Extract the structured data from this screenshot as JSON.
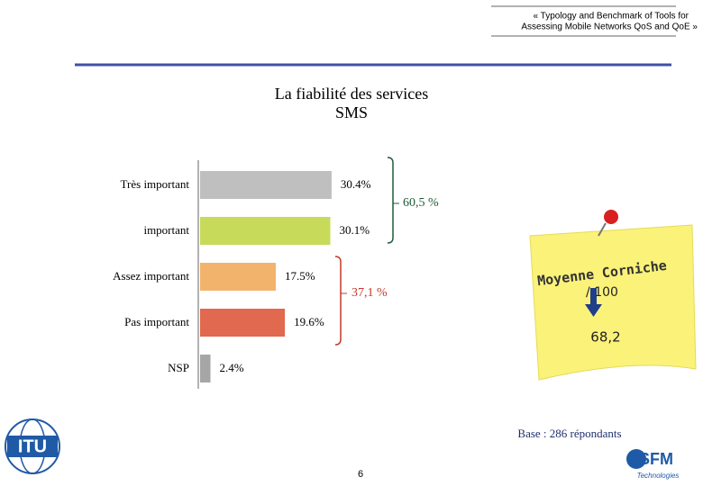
{
  "header": {
    "lines": [
      "« Typology and Benchmark of Tools for",
      "Assessing Mobile Networks QoS and QoE »"
    ]
  },
  "chart_data": {
    "type": "bar",
    "orientation": "horizontal",
    "title": "La fiabilité des services SMS",
    "categories": [
      "Très important",
      "important",
      "Assez important",
      "Pas important",
      "NSP"
    ],
    "values": [
      30.4,
      30.1,
      17.5,
      19.6,
      2.4
    ],
    "value_labels": [
      "30.4%",
      "30.1%",
      "17.5%",
      "19.6%",
      "2.4%"
    ],
    "colors": [
      "#bfbfbf",
      "#c8da5a",
      "#f2b46c",
      "#e0694f",
      "#a6a6a6"
    ],
    "brackets": [
      {
        "label": "60,5 %",
        "color": "#1e5c3a"
      },
      {
        "label": "37,1 %",
        "color": "#c0392b"
      }
    ]
  },
  "note": {
    "title": "Moyenne Corniche",
    "subtitle": "/ 100",
    "value": "68,2"
  },
  "footer": {
    "base": "Base : 286 répondants",
    "page": "6",
    "logo_left": "ITU",
    "logo_right": "SFM",
    "logo_right_sub": "Technologies"
  }
}
